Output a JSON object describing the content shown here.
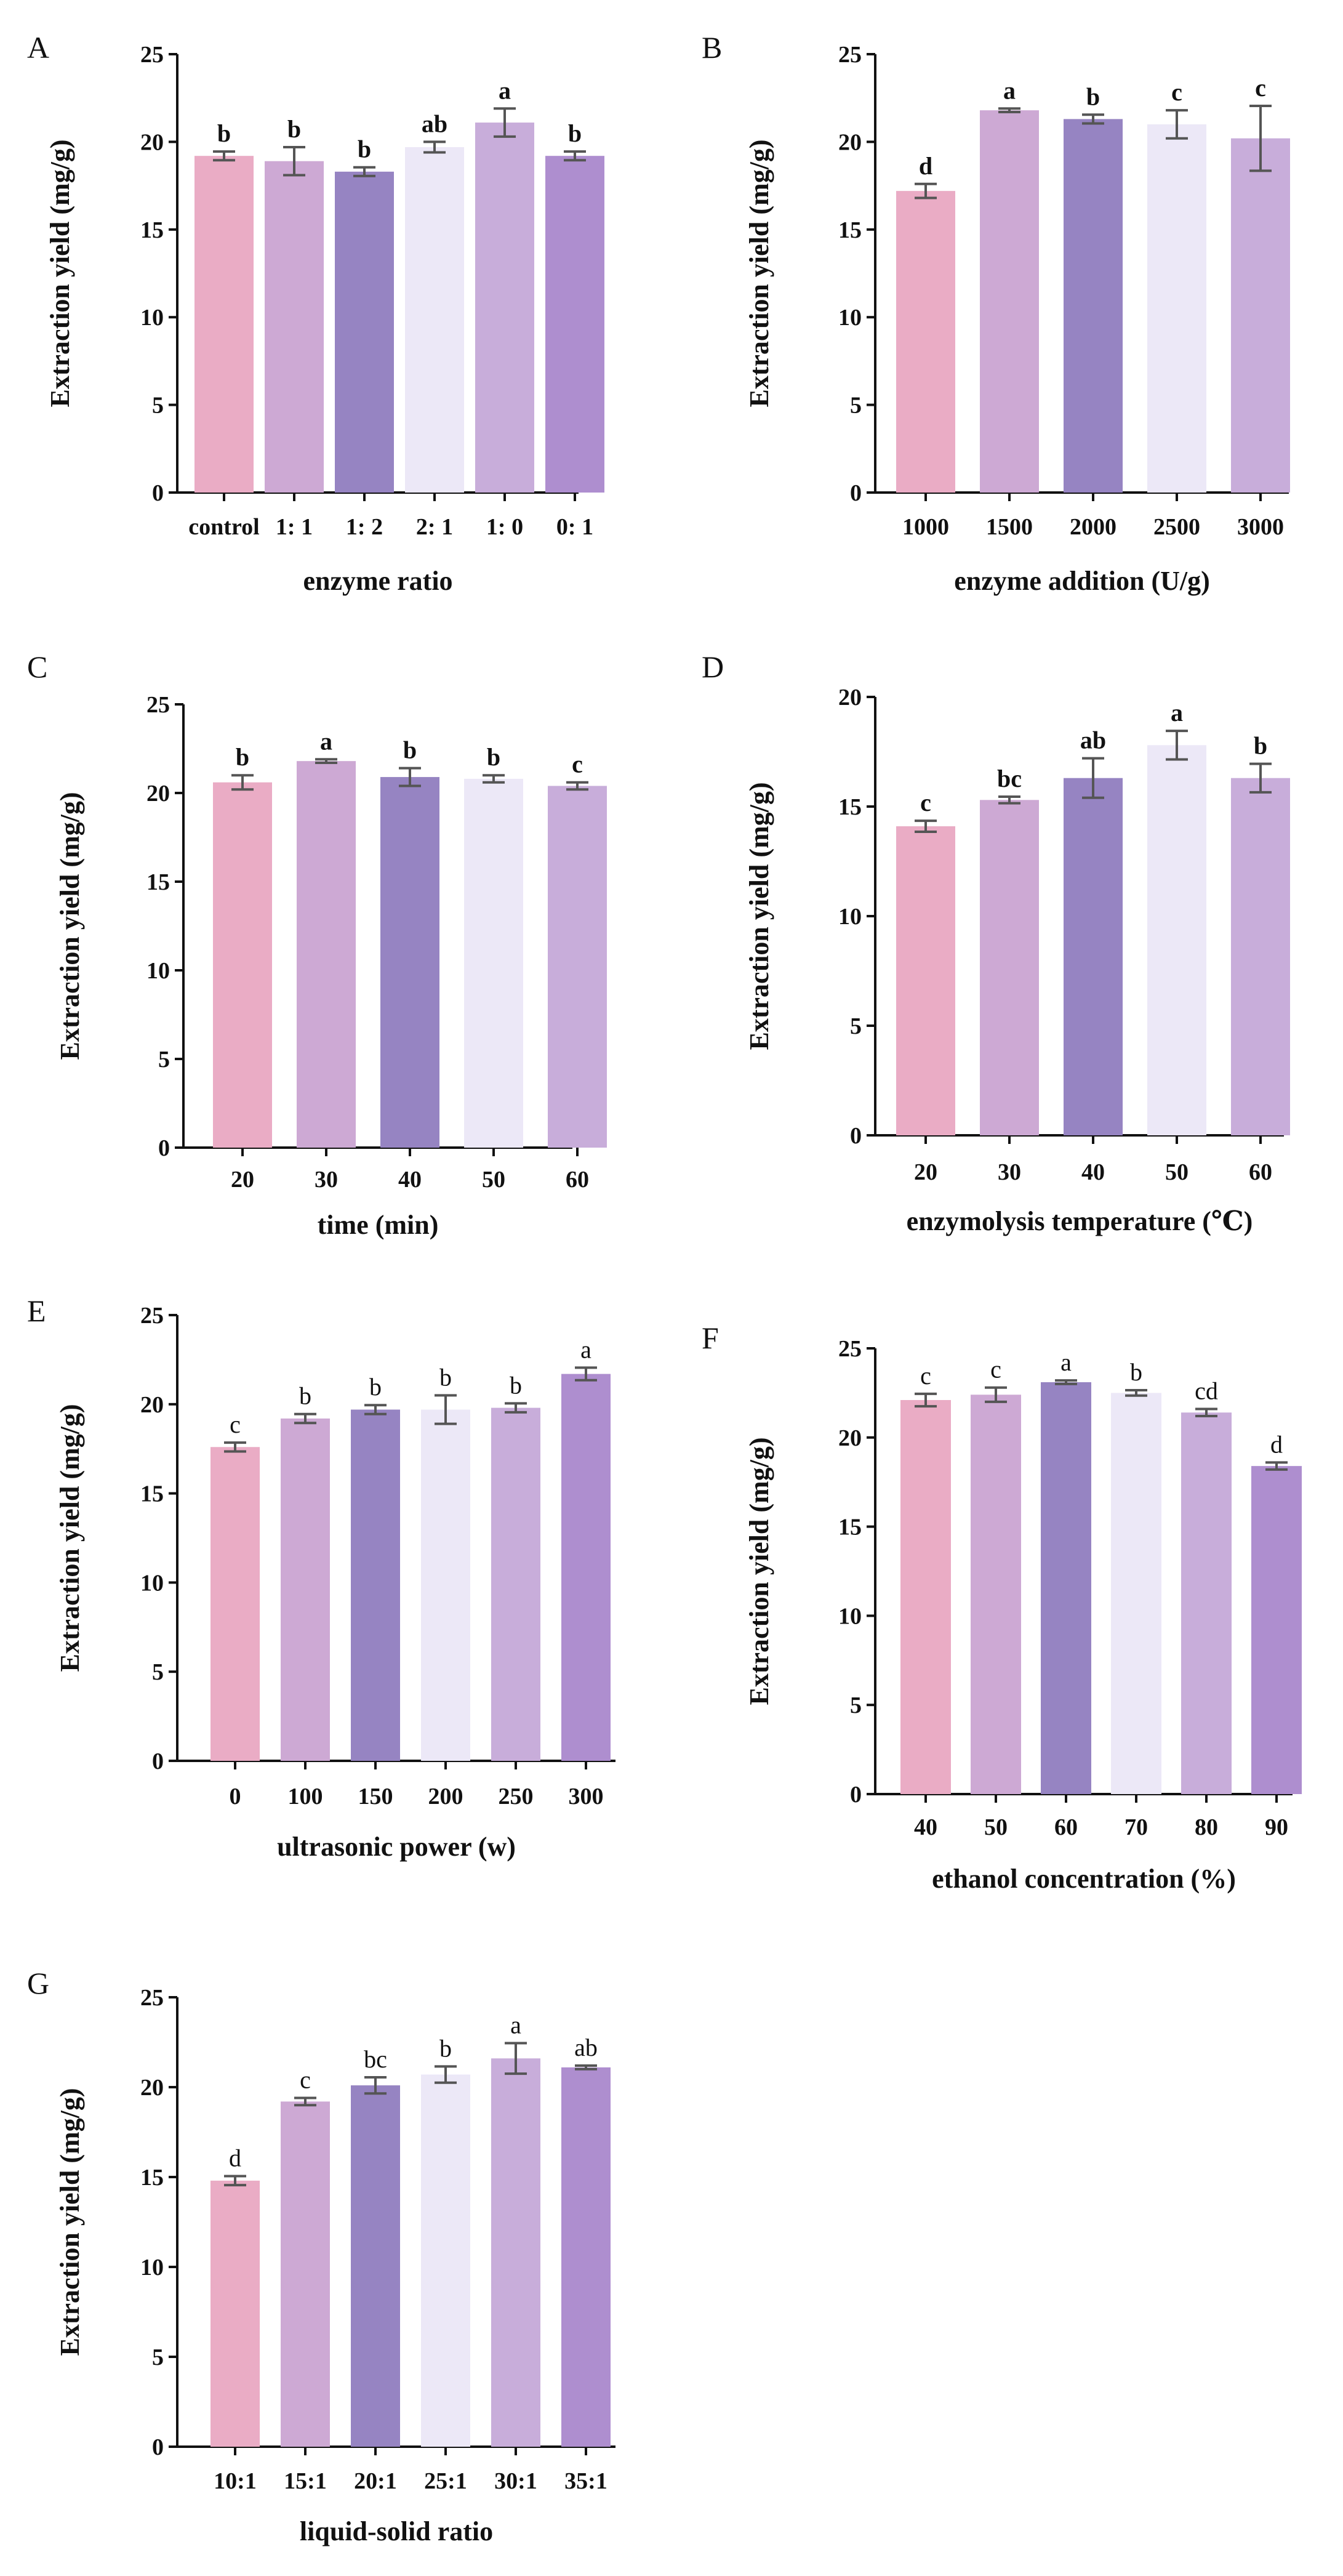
{
  "figure": {
    "ylabel": "Extraction yield (mg/g)",
    "colors": [
      "#EAACC5",
      "#CDA9D4",
      "#9684C2",
      "#ECE8F7",
      "#C8ADDA",
      "#AE8ECF"
    ]
  },
  "chart_data": [
    {
      "panel": "A",
      "type": "bar",
      "title": "",
      "xlabel": "enzyme ratio",
      "ylabel": "Extraction yield (mg/g)",
      "ylim": [
        0,
        25
      ],
      "yticks": [
        0,
        5,
        10,
        15,
        20,
        25
      ],
      "categories": [
        "control",
        "1: 1",
        "1: 2",
        "2: 1",
        "1: 0",
        "0: 1"
      ],
      "values": [
        19.2,
        18.9,
        18.3,
        19.7,
        21.1,
        19.2
      ],
      "errors": [
        0.25,
        0.8,
        0.25,
        0.3,
        0.8,
        0.25
      ],
      "sig": [
        "b",
        "b",
        "b",
        "ab",
        "a",
        "b"
      ],
      "sig_bold": true
    },
    {
      "panel": "B",
      "type": "bar",
      "title": "",
      "xlabel": "enzyme addition (U/g)",
      "ylabel": "Extraction yield (mg/g)",
      "ylim": [
        0,
        25
      ],
      "yticks": [
        0,
        5,
        10,
        15,
        20,
        25
      ],
      "categories": [
        "1000",
        "1500",
        "2000",
        "2500",
        "3000"
      ],
      "values": [
        17.2,
        21.8,
        21.3,
        21.0,
        20.2
      ],
      "errors": [
        0.4,
        0.1,
        0.25,
        0.8,
        1.85
      ],
      "sig": [
        "d",
        "a",
        "b",
        "c",
        "c"
      ],
      "sig_bold": true
    },
    {
      "panel": "C",
      "type": "bar",
      "title": "",
      "xlabel": "time (min)",
      "ylabel": "Extraction yield (mg/g)",
      "ylim": [
        0,
        25
      ],
      "yticks": [
        0,
        5,
        10,
        15,
        20,
        25
      ],
      "categories": [
        "20",
        "30",
        "40",
        "50",
        "60"
      ],
      "values": [
        20.6,
        21.8,
        20.9,
        20.8,
        20.4
      ],
      "errors": [
        0.4,
        0.1,
        0.5,
        0.2,
        0.2
      ],
      "sig": [
        "b",
        "a",
        "b",
        "b",
        "c"
      ],
      "sig_bold": true
    },
    {
      "panel": "D",
      "type": "bar",
      "title": "",
      "xlabel": "enzymolysis temperature (℃)",
      "ylabel": "Extraction yield (mg/g)",
      "ylim": [
        0,
        20
      ],
      "yticks": [
        0,
        5,
        10,
        15,
        20
      ],
      "categories": [
        "20",
        "30",
        "40",
        "50",
        "60"
      ],
      "values": [
        14.1,
        15.3,
        16.3,
        17.8,
        16.3
      ],
      "errors": [
        0.25,
        0.15,
        0.9,
        0.65,
        0.65
      ],
      "sig": [
        "c",
        "bc",
        "ab",
        "a",
        "b"
      ],
      "sig_bold": true
    },
    {
      "panel": "E",
      "type": "bar",
      "title": "",
      "xlabel": "ultrasonic power (w)",
      "ylabel": "Extraction yield (mg/g)",
      "ylim": [
        0,
        25
      ],
      "yticks": [
        0,
        5,
        10,
        15,
        20,
        25
      ],
      "categories": [
        "0",
        "100",
        "150",
        "200",
        "250",
        "300"
      ],
      "values": [
        17.6,
        19.2,
        19.7,
        19.7,
        19.8,
        21.7
      ],
      "errors": [
        0.25,
        0.25,
        0.25,
        0.8,
        0.25,
        0.35
      ],
      "sig": [
        "c",
        "b",
        "b",
        "b",
        "b",
        "a"
      ],
      "sig_bold": false
    },
    {
      "panel": "F",
      "type": "bar",
      "title": "",
      "xlabel": "ethanol concentration (%)",
      "ylabel": "Extraction yield (mg/g)",
      "ylim": [
        0,
        25
      ],
      "yticks": [
        0,
        5,
        10,
        15,
        20,
        25
      ],
      "categories": [
        "40",
        "50",
        "60",
        "70",
        "80",
        "90"
      ],
      "values": [
        22.1,
        22.4,
        23.1,
        22.5,
        21.4,
        18.4
      ],
      "errors": [
        0.35,
        0.4,
        0.1,
        0.15,
        0.2,
        0.2
      ],
      "sig": [
        "c",
        "c",
        "a",
        "b",
        "cd",
        "d"
      ],
      "sig_bold": false
    },
    {
      "panel": "G",
      "type": "bar",
      "title": "",
      "xlabel": "liquid-solid ratio",
      "ylabel": "Extraction yield (mg/g)",
      "ylim": [
        0,
        25
      ],
      "yticks": [
        0,
        5,
        10,
        15,
        20,
        25
      ],
      "categories": [
        "10:1",
        "15:1",
        "20:1",
        "25:1",
        "30:1",
        "35:1"
      ],
      "values": [
        14.8,
        19.2,
        20.1,
        20.7,
        21.6,
        21.1
      ],
      "errors": [
        0.25,
        0.2,
        0.45,
        0.45,
        0.85,
        0.1
      ],
      "sig": [
        "d",
        "c",
        "bc",
        "b",
        "a",
        "ab"
      ],
      "sig_bold": false
    }
  ]
}
